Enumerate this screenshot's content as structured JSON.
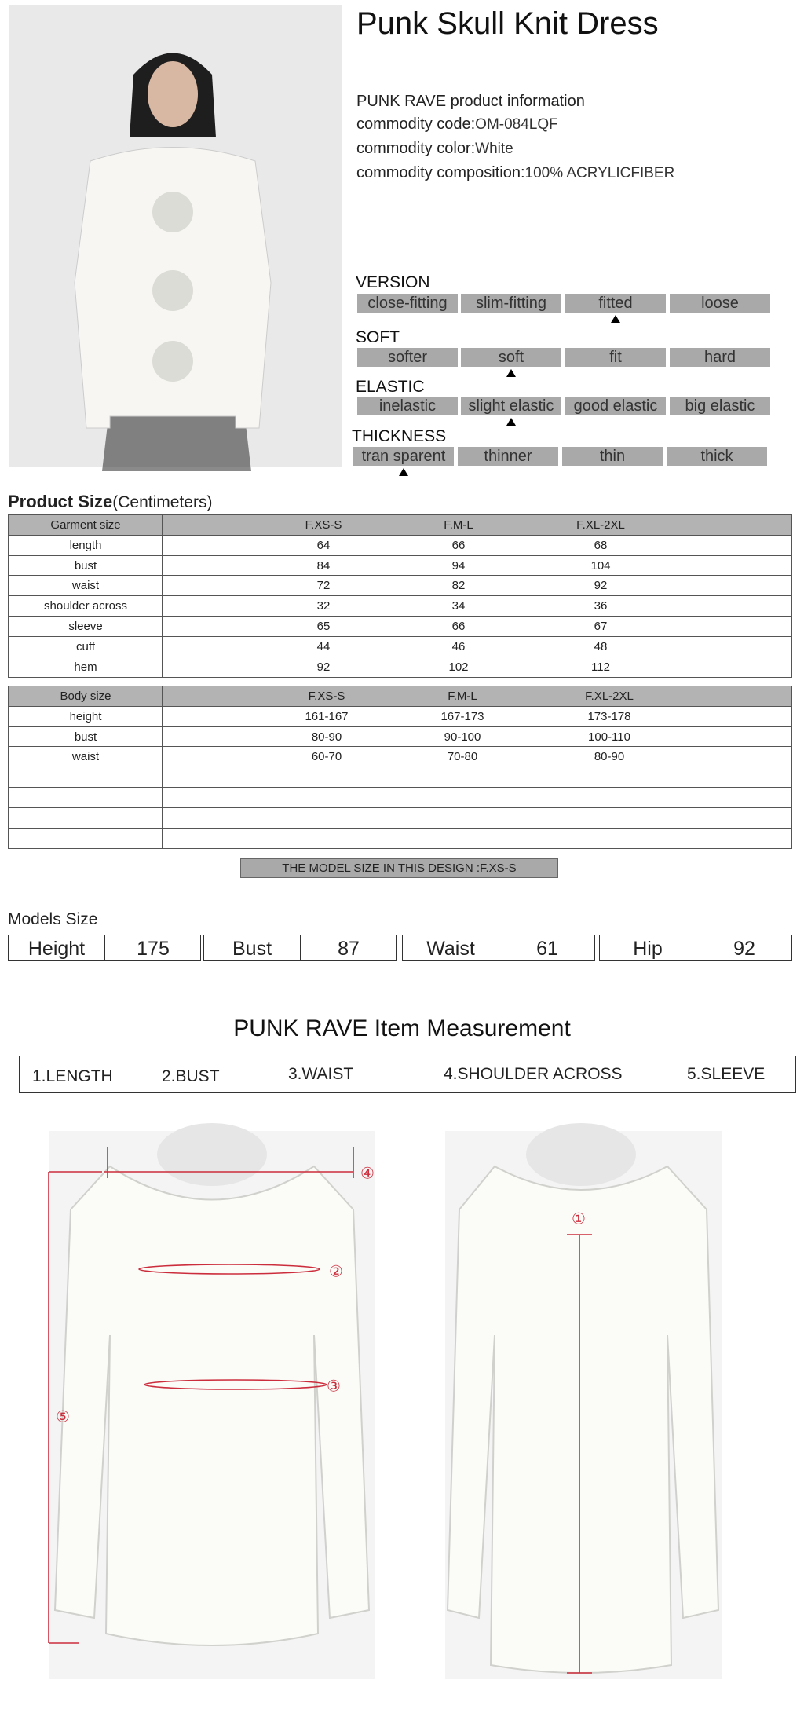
{
  "product": {
    "title": "Punk Skull Knit Dress",
    "info_heading": "PUNK RAVE product information",
    "info": [
      {
        "label": "commodity code:",
        "value": "OM-084LQF"
      },
      {
        "label": "commodity color:",
        "value": "White"
      },
      {
        "label": "commodity composition:",
        "value": "100% ACRYLICFIBER"
      }
    ]
  },
  "attributes": [
    {
      "name": "VERSION",
      "options": [
        "close-fitting",
        "slim-fitting",
        "fitted",
        "loose"
      ],
      "selected": 2
    },
    {
      "name": "SOFT",
      "options": [
        "softer",
        "soft",
        "fit",
        "hard"
      ],
      "selected": 1
    },
    {
      "name": "ELASTIC",
      "options": [
        "inelastic",
        "slight elastic",
        "good elastic",
        "big elastic"
      ],
      "selected": 1
    },
    {
      "name": "THICKNESS",
      "options": [
        "tran sparent",
        "thinner",
        "thin",
        "thick"
      ],
      "selected": 0
    }
  ],
  "product_size": {
    "title": "Product Size",
    "unit": "(Centimeters)",
    "header": [
      "Garment size",
      "F.XS-S",
      "F.M-L",
      "F.XL-2XL"
    ],
    "rows": [
      [
        "length",
        64,
        66,
        68
      ],
      [
        "bust",
        84,
        94,
        104
      ],
      [
        "waist",
        72,
        82,
        92
      ],
      [
        "shoulder across",
        32,
        34,
        36
      ],
      [
        "sleeve",
        65,
        66,
        67
      ],
      [
        "cuff",
        44,
        46,
        48
      ],
      [
        "hem",
        92,
        102,
        112
      ]
    ]
  },
  "body_size": {
    "header": [
      "Body size",
      "F.XS-S",
      "F.M-L",
      "F.XL-2XL"
    ],
    "rows": [
      [
        "height",
        "161-167",
        "167-173",
        "173-178"
      ],
      [
        "bust",
        "80-90",
        "90-100",
        "100-110"
      ],
      [
        "waist",
        "60-70",
        "70-80",
        "80-90"
      ]
    ]
  },
  "model_note": "THE MODEL SIZE IN THIS DESIGN :F.XS-S",
  "models_size": {
    "title": "Models Size",
    "items": [
      {
        "label": "Height",
        "value": 175
      },
      {
        "label": "Bust",
        "value": 87
      },
      {
        "label": "Waist",
        "value": 61
      },
      {
        "label": "Hip",
        "value": 92
      }
    ]
  },
  "measurement": {
    "title": "PUNK RAVE Item  Measurement",
    "items": [
      "1.LENGTH",
      "2.BUST",
      "3.WAIST",
      "4.SHOULDER ACROSS",
      "5.SLEEVE"
    ],
    "markers": [
      "①",
      "②",
      "③",
      "④",
      "⑤"
    ]
  }
}
